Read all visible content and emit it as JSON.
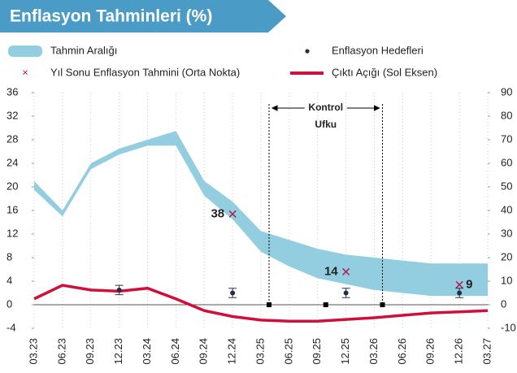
{
  "chart_data": {
    "type": "line",
    "title": "Enflasyon Tahminleri (%)",
    "categories": [
      "03.23",
      "06.23",
      "09.23",
      "12.23",
      "03.24",
      "06.24",
      "09.24",
      "12.24",
      "03.25",
      "06.25",
      "09.25",
      "12.25",
      "03.26",
      "06.26",
      "09.26",
      "12.26",
      "03.27"
    ],
    "ylim": [
      -4,
      36
    ],
    "yticks": [
      -4,
      0,
      4,
      8,
      12,
      16,
      20,
      24,
      28,
      32,
      36
    ],
    "y2lim": [
      -10,
      90
    ],
    "y2ticks": [
      -10,
      0,
      10,
      20,
      30,
      40,
      50,
      60,
      70,
      80,
      90
    ],
    "band": {
      "name": "Tahmin Aralığı",
      "color": "#92cde0",
      "lower": [
        19.5,
        15,
        23,
        25.5,
        27,
        27,
        18.5,
        14.5,
        9,
        6.5,
        4.5,
        3.5,
        2.5,
        2,
        1.5,
        1.5,
        1.5
      ],
      "upper": [
        21,
        16,
        24,
        26.5,
        28,
        29.5,
        21,
        17.5,
        12.5,
        11,
        9.5,
        8.5,
        8,
        7.5,
        7,
        7,
        7
      ]
    },
    "series": [
      {
        "name": "Çıktı Açığı (Sol Eksen)",
        "color": "#d0103a",
        "values": [
          1,
          3.3,
          2.5,
          2.3,
          2.8,
          1,
          -1,
          -2,
          -2.6,
          -2.8,
          -2.8,
          -2.5,
          -2.2,
          -1.8,
          -1.4,
          -1.2,
          -1
        ]
      }
    ],
    "targets": {
      "name": "Enflasyon Hedefleri",
      "color": "#1f2f4a",
      "values": [
        null,
        null,
        null,
        2.5,
        null,
        null,
        null,
        2,
        null,
        null,
        null,
        2,
        null,
        null,
        null,
        2,
        null
      ],
      "errors": [
        null,
        null,
        null,
        0.8,
        null,
        null,
        null,
        0.8,
        null,
        null,
        null,
        0.8,
        null,
        null,
        null,
        0.8,
        null
      ]
    },
    "forecasts": {
      "name": "Yıl Sonu Enflasyon Tahmini (Orta Nokta)",
      "color": "#b0174a",
      "values": [
        null,
        null,
        null,
        null,
        null,
        null,
        null,
        15.4,
        null,
        null,
        null,
        5.6,
        null,
        null,
        null,
        3.4,
        null
      ],
      "annotations": [
        null,
        null,
        null,
        null,
        null,
        null,
        null,
        "38",
        null,
        null,
        null,
        "14",
        null,
        null,
        null,
        "9",
        null
      ]
    },
    "markers": {
      "x": [
        "03.25",
        "09.25",
        "03.26"
      ],
      "values": [
        0,
        0,
        0
      ]
    },
    "control_horizon": {
      "label_1": "Kontrol",
      "label_2": "Ufku",
      "x": [
        "03.25",
        "03.26"
      ]
    }
  }
}
